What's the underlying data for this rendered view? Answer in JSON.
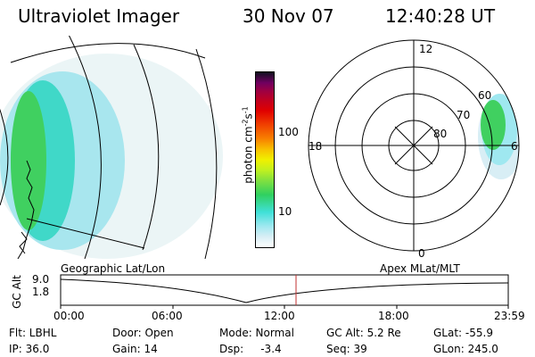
{
  "header": {
    "instrument": "Ultraviolet Imager",
    "date": "30 Nov 07",
    "time": "12:40:28 UT"
  },
  "colorbar": {
    "label_main": "photon cm",
    "label_sup1": "-2",
    "label_s": "s",
    "label_sup2": "-1",
    "ticks": [
      "100",
      "10"
    ],
    "colors": [
      "#ffffff",
      "#d8eef5",
      "#9fe8f0",
      "#40e0d8",
      "#20c8b8",
      "#30d060",
      "#80e040",
      "#c0f020",
      "#f0f000",
      "#f8c000",
      "#f88000",
      "#f04000",
      "#e00000",
      "#c00020",
      "#a00040",
      "#700060",
      "#400040",
      "#101020"
    ]
  },
  "polar": {
    "clock_labels": [
      "12",
      "18",
      "6",
      "0"
    ],
    "lat_labels": [
      "60",
      "70",
      "80"
    ]
  },
  "timeline": {
    "left_label": "Geographic Lat/Lon",
    "right_label": "Apex MLat/MLT",
    "y_title": "GC Alt",
    "y_ticks": [
      "9.0",
      "1.8"
    ],
    "x_ticks": [
      "00:00",
      "06:00",
      "12:00",
      "18:00",
      "23:59"
    ],
    "current_time_marker": "12:40:28",
    "marker_color": "#c03030"
  },
  "info": {
    "row1": [
      "Flt: LBHL",
      "Door: Open",
      "Mode: Normal",
      "GC Alt: 5.2 Re",
      "GLat: -55.9"
    ],
    "row2": [
      "IP: 36.0",
      "Gain: 14",
      "Dsp:     -3.4",
      "Seq: 39",
      "GLon: 245.0"
    ]
  }
}
